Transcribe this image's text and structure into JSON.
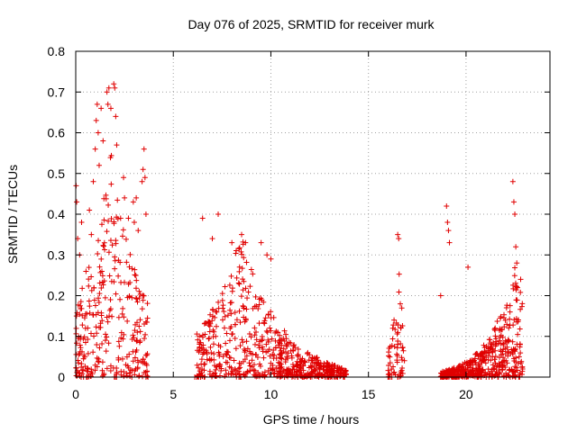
{
  "chart_data": {
    "type": "scatter",
    "title": "Day 076 of 2025, SRMTID for receiver murk",
    "xlabel": "GPS time / hours",
    "ylabel": "SRMTID / TECUs",
    "xlim": [
      0,
      24.3
    ],
    "ylim": [
      0,
      0.8
    ],
    "grid": true,
    "xticks": [
      0,
      5,
      10,
      15,
      20
    ],
    "yticks": [
      0,
      0.1,
      0.2,
      0.3,
      0.4,
      0.5,
      0.6,
      0.7,
      0.8
    ],
    "xtick_labels": [
      "0",
      "5",
      "10",
      "15",
      "20"
    ],
    "ytick_labels": [
      "0",
      "0.1",
      "0.2",
      "0.3",
      "0.4",
      "0.5",
      "0.6",
      "0.7",
      "0.8"
    ],
    "marker": "+",
    "color": "#e00000",
    "series": [
      {
        "name": "SRMTID",
        "clusters": [
          {
            "x_start": 0.0,
            "x_end": 3.7,
            "count": 300,
            "y_floor": 0.0,
            "y_peak": 0.56,
            "peak_at": 1.8,
            "peak_sharpness": 0.45
          },
          {
            "x_start": 6.2,
            "x_end": 13.9,
            "count": 650,
            "y_floor": 0.0,
            "y_peak": 0.36,
            "peak_at": 8.5,
            "peak_sharpness": 0.25
          },
          {
            "x_start": 16.0,
            "x_end": 16.9,
            "count": 60,
            "y_floor": 0.0,
            "y_peak": 0.27,
            "peak_at": 16.6,
            "peak_sharpness": 0.5
          },
          {
            "x_start": 18.7,
            "x_end": 22.9,
            "count": 500,
            "y_floor": 0.0,
            "y_peak": 0.28,
            "peak_at": 22.5,
            "peak_sharpness": 0.3
          }
        ],
        "points": [
          {
            "x": 0.02,
            "y": 0.47
          },
          {
            "x": 0.05,
            "y": 0.43
          },
          {
            "x": 0.1,
            "y": 0.34
          },
          {
            "x": 0.2,
            "y": 0.3
          },
          {
            "x": 0.3,
            "y": 0.38
          },
          {
            "x": 0.5,
            "y": 0.12
          },
          {
            "x": 0.7,
            "y": 0.41
          },
          {
            "x": 0.8,
            "y": 0.35
          },
          {
            "x": 0.9,
            "y": 0.48
          },
          {
            "x": 1.0,
            "y": 0.56
          },
          {
            "x": 1.05,
            "y": 0.63
          },
          {
            "x": 1.1,
            "y": 0.67
          },
          {
            "x": 1.15,
            "y": 0.6
          },
          {
            "x": 1.2,
            "y": 0.52
          },
          {
            "x": 1.3,
            "y": 0.66
          },
          {
            "x": 1.4,
            "y": 0.58
          },
          {
            "x": 1.6,
            "y": 0.7
          },
          {
            "x": 1.65,
            "y": 0.67
          },
          {
            "x": 1.7,
            "y": 0.71
          },
          {
            "x": 1.8,
            "y": 0.66
          },
          {
            "x": 1.95,
            "y": 0.72
          },
          {
            "x": 2.0,
            "y": 0.71
          },
          {
            "x": 2.05,
            "y": 0.64
          },
          {
            "x": 2.1,
            "y": 0.57
          },
          {
            "x": 2.3,
            "y": 0.39
          },
          {
            "x": 2.45,
            "y": 0.49
          },
          {
            "x": 2.5,
            "y": 0.44
          },
          {
            "x": 2.7,
            "y": 0.39
          },
          {
            "x": 2.95,
            "y": 0.43
          },
          {
            "x": 3.0,
            "y": 0.38
          },
          {
            "x": 3.1,
            "y": 0.44
          },
          {
            "x": 3.2,
            "y": 0.36
          },
          {
            "x": 3.4,
            "y": 0.48
          },
          {
            "x": 3.45,
            "y": 0.51
          },
          {
            "x": 3.5,
            "y": 0.56
          },
          {
            "x": 3.55,
            "y": 0.49
          },
          {
            "x": 3.6,
            "y": 0.4
          },
          {
            "x": 6.5,
            "y": 0.39
          },
          {
            "x": 7.0,
            "y": 0.34
          },
          {
            "x": 7.3,
            "y": 0.4
          },
          {
            "x": 8.0,
            "y": 0.33
          },
          {
            "x": 8.5,
            "y": 0.35
          },
          {
            "x": 8.7,
            "y": 0.33
          },
          {
            "x": 9.5,
            "y": 0.33
          },
          {
            "x": 9.8,
            "y": 0.3
          },
          {
            "x": 10.0,
            "y": 0.29
          },
          {
            "x": 16.5,
            "y": 0.35
          },
          {
            "x": 16.55,
            "y": 0.34
          },
          {
            "x": 18.7,
            "y": 0.2
          },
          {
            "x": 19.0,
            "y": 0.42
          },
          {
            "x": 19.05,
            "y": 0.38
          },
          {
            "x": 19.1,
            "y": 0.36
          },
          {
            "x": 19.15,
            "y": 0.33
          },
          {
            "x": 20.1,
            "y": 0.27
          },
          {
            "x": 22.4,
            "y": 0.48
          },
          {
            "x": 22.45,
            "y": 0.43
          },
          {
            "x": 22.5,
            "y": 0.4
          },
          {
            "x": 22.55,
            "y": 0.32
          },
          {
            "x": 22.6,
            "y": 0.28
          },
          {
            "x": 22.8,
            "y": 0.24
          },
          {
            "x": 0.55,
            "y": 0.0
          },
          {
            "x": 0.6,
            "y": 0.0
          },
          {
            "x": 3.6,
            "y": 0.0
          },
          {
            "x": 3.7,
            "y": 0.0
          },
          {
            "x": 6.1,
            "y": 0.0
          },
          {
            "x": 6.2,
            "y": 0.0
          },
          {
            "x": 6.3,
            "y": 0.0
          },
          {
            "x": 6.4,
            "y": 0.0
          },
          {
            "x": 16.0,
            "y": 0.0
          },
          {
            "x": 16.2,
            "y": 0.0
          },
          {
            "x": 16.5,
            "y": 0.0
          },
          {
            "x": 18.7,
            "y": 0.0
          },
          {
            "x": 18.8,
            "y": 0.0
          }
        ]
      }
    ]
  }
}
